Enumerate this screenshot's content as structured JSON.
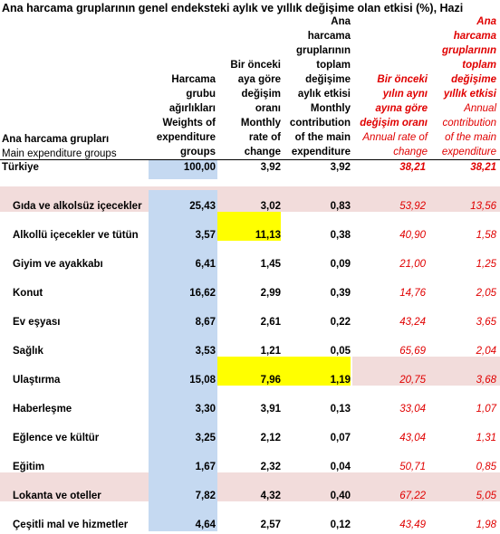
{
  "title_black": "Ana harcama gruplarının genel endeksteki aylık ve yıllık değişime olan etkisi (%), Hazi",
  "title_red": "Ana harcama gruplarının toplam değişime yıllık etkisi",
  "headers": {
    "group_tr": "Ana harcama grupları",
    "group_en": "Main expenditure groups",
    "weight": "Harcama\ngrubu\nağırlıkları\nWeights of\nexpenditure\ngroups",
    "monthly": "Bir önceki\naya göre\ndeğişim\noranı\nMonthly\nrate of\nchange",
    "contribution": "Ana\nharcama\ngruplarının\ntoplam\ndeğişime\naylık etkisi\nMonthly\ncontribution\nof the main\nexpenditure",
    "annual_tr": "Bir önceki\nyılın aynı\nayına göre\ndeğişim oranı",
    "annual_en": "Annual rate of\nchange",
    "annual_contrib_tr": "Ana\nharcama\ngruplarının\ntoplam\ndeğişime\nyıllık etkisi",
    "annual_contrib_en": "Annual\ncontribution\nof the main\nexpenditure"
  },
  "total": {
    "name": "Türkiye",
    "weight": "100,00",
    "monthly": "3,92",
    "contribution": "3,92",
    "annual": "38,21",
    "annual_contrib": "38,21"
  },
  "rows": [
    {
      "name": "Gıda ve alkolsüz içecekler",
      "weight": "25,43",
      "monthly": "3,02",
      "contribution": "0,83",
      "annual": "53,92",
      "annual_contrib": "13,56"
    },
    {
      "name": "Alkollü içecekler ve tütün",
      "weight": "3,57",
      "monthly": "11,13",
      "contribution": "0,38",
      "annual": "40,90",
      "annual_contrib": "1,58"
    },
    {
      "name": "Giyim ve ayakkabı",
      "weight": "6,41",
      "monthly": "1,45",
      "contribution": "0,09",
      "annual": "21,00",
      "annual_contrib": "1,25"
    },
    {
      "name": "Konut",
      "weight": "16,62",
      "monthly": "2,99",
      "contribution": "0,39",
      "annual": "14,76",
      "annual_contrib": "2,05"
    },
    {
      "name": "Ev eşyası",
      "weight": "8,67",
      "monthly": "2,61",
      "contribution": "0,22",
      "annual": "43,24",
      "annual_contrib": "3,65"
    },
    {
      "name": "Sağlık",
      "weight": "3,53",
      "monthly": "1,21",
      "contribution": "0,05",
      "annual": "65,69",
      "annual_contrib": "2,04"
    },
    {
      "name": "Ulaştırma",
      "weight": "15,08",
      "monthly": "7,96",
      "contribution": "1,19",
      "annual": "20,75",
      "annual_contrib": "3,68"
    },
    {
      "name": "Haberleşme",
      "weight": "3,30",
      "monthly": "3,91",
      "contribution": "0,13",
      "annual": "33,04",
      "annual_contrib": "1,07"
    },
    {
      "name": "Eğlence ve kültür",
      "weight": "3,25",
      "monthly": "2,12",
      "contribution": "0,07",
      "annual": "43,04",
      "annual_contrib": "1,31"
    },
    {
      "name": "Eğitim",
      "weight": "1,67",
      "monthly": "2,32",
      "contribution": "0,04",
      "annual": "50,71",
      "annual_contrib": "0,85"
    },
    {
      "name": "Lokanta ve oteller",
      "weight": "7,82",
      "monthly": "4,32",
      "contribution": "0,40",
      "annual": "67,22",
      "annual_contrib": "5,05"
    },
    {
      "name": "Çeşitli mal ve hizmetler",
      "weight": "4,64",
      "monthly": "2,57",
      "contribution": "0,12",
      "annual": "43,49",
      "annual_contrib": "1,98"
    }
  ],
  "colors": {
    "weight_column": "#c5d9f1",
    "highlight_row": "#f2dcdb",
    "highlight_cell": "#ffff00",
    "annual_text": "#e00000"
  }
}
